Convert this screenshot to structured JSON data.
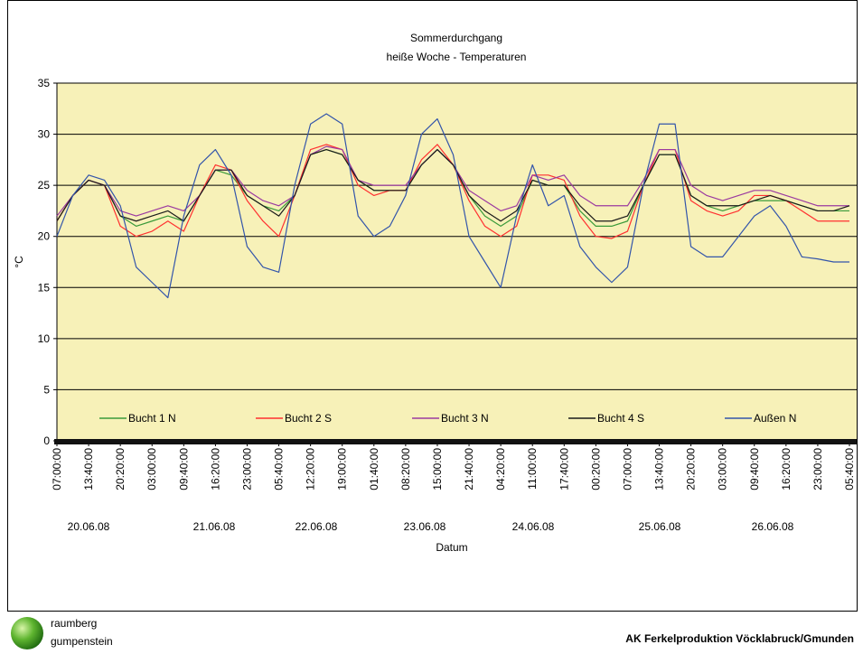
{
  "chart_data": {
    "type": "line",
    "title": [
      "Sommerdurchgang",
      "heiße Woche - Temperaturen"
    ],
    "y_label": "°C",
    "x_label": "Datum",
    "categories": [
      "07:00:00",
      null,
      "13:40:00",
      null,
      "20:20:00",
      null,
      "03:00:00",
      null,
      "09:40:00",
      null,
      "16:20:00",
      null,
      "23:00:00",
      null,
      "05:40:00",
      null,
      "12:20:00",
      null,
      "19:00:00",
      null,
      "01:40:00",
      null,
      "08:20:00",
      null,
      "15:00:00",
      null,
      "21:40:00",
      null,
      "04:20:00",
      null,
      "11:00:00",
      null,
      "17:40:00",
      null,
      "00:20:00",
      null,
      "07:00:00",
      null,
      "13:40:00",
      null,
      "20:20:00",
      null,
      "03:00:00",
      null,
      "09:40:00",
      null,
      "16:20:00",
      null,
      "23:00:00",
      null,
      "05:40:00"
    ],
    "dates": [
      "20.06.08",
      "21.06.08",
      "22.06.08",
      "23.06.08",
      "24.06.08",
      "25.06.08",
      "26.06.08"
    ],
    "ylim": [
      0,
      35
    ],
    "yticks": [
      0,
      5,
      10,
      15,
      20,
      25,
      30,
      35
    ],
    "grid": true,
    "legend": "bottom",
    "series": [
      {
        "name": "Bucht 1 N",
        "color": "#3a9a3a",
        "values": [
          21.5,
          24,
          25.5,
          25,
          22,
          21,
          21.5,
          22,
          21.5,
          24,
          26.5,
          26,
          24,
          23,
          22.5,
          24,
          28,
          28.5,
          28,
          25.5,
          24.5,
          24.5,
          24.5,
          27,
          28.5,
          27,
          24,
          22,
          21,
          22,
          25.5,
          25,
          25,
          22.5,
          21,
          21,
          21.5,
          25,
          28,
          28,
          24,
          23,
          22.5,
          23,
          23.5,
          23.5,
          23.5,
          23,
          22.5,
          22.5,
          22.5
        ]
      },
      {
        "name": "Bucht 2 S",
        "color": "#ff3030",
        "values": [
          21.5,
          24,
          25.5,
          25,
          21,
          20,
          20.5,
          21.5,
          20.5,
          24,
          27,
          26.5,
          23.5,
          21.5,
          20,
          24,
          28.5,
          29,
          28.5,
          25,
          24,
          24.5,
          24.5,
          27.5,
          29,
          27,
          23.5,
          21,
          20,
          21,
          26,
          26,
          25.5,
          22,
          20,
          19.8,
          20.5,
          25,
          28.5,
          28.5,
          23.5,
          22.5,
          22,
          22.5,
          24,
          24,
          23.5,
          22.5,
          21.5,
          21.5,
          21.5
        ]
      },
      {
        "name": "Bucht 3 N",
        "color": "#9b3aa0",
        "values": [
          22,
          24,
          25.5,
          25,
          22.5,
          22,
          22.5,
          23,
          22.5,
          24,
          26.5,
          26.5,
          24.5,
          23.5,
          23,
          24,
          28,
          28.8,
          28.5,
          25.5,
          25,
          25,
          25,
          27,
          28.5,
          27,
          24.5,
          23.5,
          22.5,
          23,
          26,
          25.5,
          26,
          24,
          23,
          23,
          23,
          25.5,
          28.5,
          28.5,
          25,
          24,
          23.5,
          24,
          24.5,
          24.5,
          24,
          23.5,
          23,
          23,
          23
        ]
      },
      {
        "name": "Bucht 4 S",
        "color": "#1a1a1a",
        "values": [
          21.5,
          24,
          25.5,
          25,
          22,
          21.5,
          22,
          22.5,
          21.5,
          24,
          26.5,
          26.5,
          24,
          23,
          22,
          24,
          28,
          28.5,
          28,
          25.5,
          24.5,
          24.5,
          24.5,
          27,
          28.5,
          27,
          24,
          22.5,
          21.5,
          22.5,
          25.5,
          25,
          25,
          23,
          21.5,
          21.5,
          22,
          25,
          28,
          28,
          24,
          23,
          23,
          23,
          23.5,
          24,
          23.5,
          23,
          22.5,
          22.5,
          23
        ]
      },
      {
        "name": "Außen N",
        "color": "#3355aa",
        "values": [
          20,
          24,
          26,
          25.5,
          23,
          17,
          15.5,
          14,
          22,
          27,
          28.5,
          26,
          19,
          17,
          16.5,
          25,
          31,
          32,
          31,
          22,
          20,
          21,
          24,
          30,
          31.5,
          28,
          20,
          17.5,
          15,
          22,
          27,
          23,
          24,
          19,
          17,
          15.5,
          17,
          25,
          31,
          31,
          19,
          18,
          18,
          20,
          22,
          23,
          21,
          18,
          17.8,
          17.5,
          17.5
        ]
      }
    ]
  },
  "logo": [
    "raumberg",
    "gumpenstein"
  ],
  "footer": "AK Ferkelproduktion Vöcklabruck/Gmunden"
}
